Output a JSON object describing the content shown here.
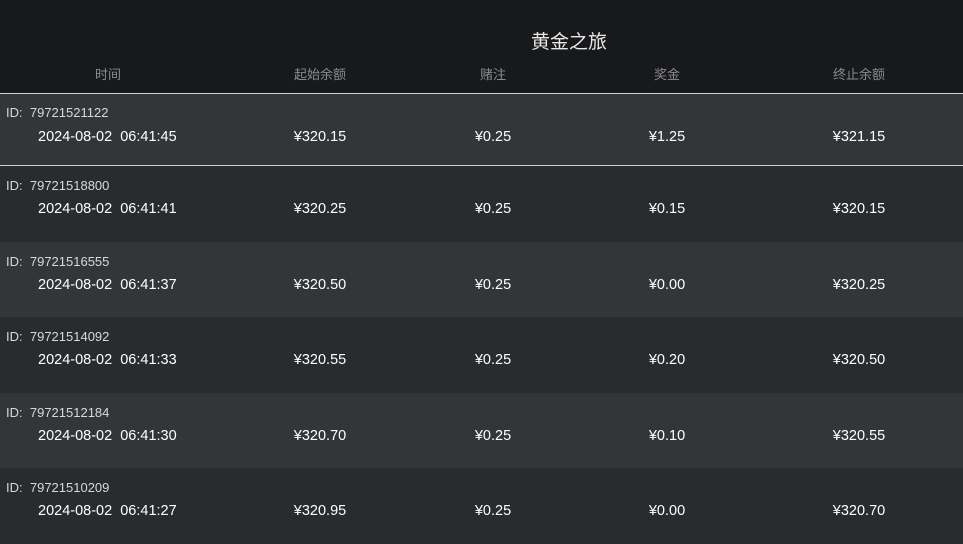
{
  "title": "黄金之旅",
  "columns": [
    "时间",
    "起始余额",
    "赌注",
    "奖金",
    "终止余额"
  ],
  "id_prefix": "ID:",
  "rows": [
    {
      "id": "79721521122",
      "time": "2024-08-02  06:41:45",
      "start": "¥320.15",
      "bet": "¥0.25",
      "win": "¥1.25",
      "end": "¥321.15"
    },
    {
      "id": "79721518800",
      "time": "2024-08-02  06:41:41",
      "start": "¥320.25",
      "bet": "¥0.25",
      "win": "¥0.15",
      "end": "¥320.15"
    },
    {
      "id": "79721516555",
      "time": "2024-08-02  06:41:37",
      "start": "¥320.50",
      "bet": "¥0.25",
      "win": "¥0.00",
      "end": "¥320.25"
    },
    {
      "id": "79721514092",
      "time": "2024-08-02  06:41:33",
      "start": "¥320.55",
      "bet": "¥0.25",
      "win": "¥0.20",
      "end": "¥320.50"
    },
    {
      "id": "79721512184",
      "time": "2024-08-02  06:41:30",
      "start": "¥320.70",
      "bet": "¥0.25",
      "win": "¥0.10",
      "end": "¥320.55"
    },
    {
      "id": "79721510209",
      "time": "2024-08-02  06:41:27",
      "start": "¥320.95",
      "bet": "¥0.25",
      "win": "¥0.00",
      "end": "¥320.70"
    }
  ]
}
